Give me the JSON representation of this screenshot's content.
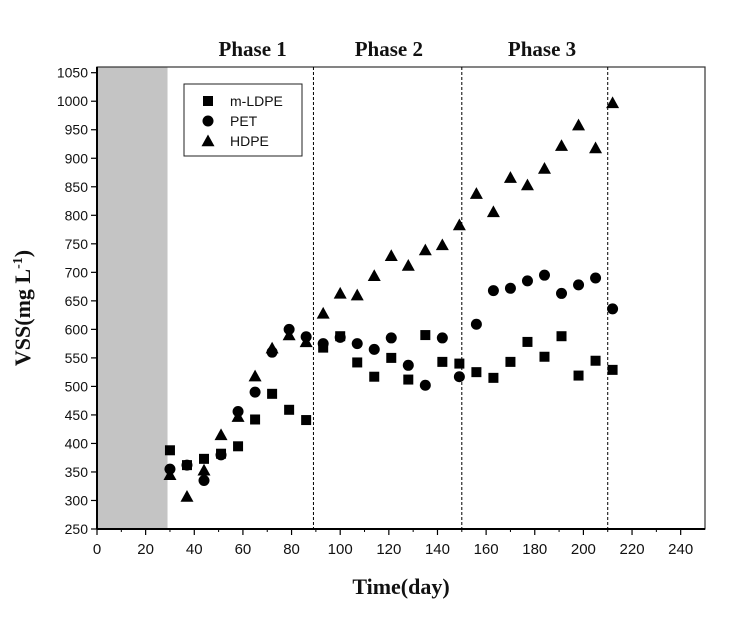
{
  "chart_data": {
    "type": "scatter",
    "xlabel": "Time(day)",
    "ylabel": "VSS(mg L",
    "ylabel_sup": "-1",
    "ylabel_close": ")",
    "xlim": [
      0,
      250
    ],
    "ylim": [
      250,
      1060
    ],
    "x_ticks": [
      0,
      20,
      40,
      60,
      80,
      100,
      120,
      140,
      160,
      180,
      200,
      220,
      240
    ],
    "y_ticks": [
      250,
      300,
      350,
      400,
      450,
      500,
      550,
      600,
      650,
      700,
      750,
      800,
      850,
      900,
      950,
      1000,
      1050
    ],
    "shaded_region": [
      0,
      29
    ],
    "phase_boundaries": [
      89,
      150,
      210
    ],
    "phases": [
      {
        "label": "Phase 1",
        "center": 64
      },
      {
        "label": "Phase 2",
        "center": 120
      },
      {
        "label": "Phase 3",
        "center": 183
      }
    ],
    "legend_position": "top-left",
    "grid": false,
    "series": [
      {
        "name": "m-LDPE",
        "marker": "square",
        "x": [
          30,
          37,
          44,
          51,
          58,
          65,
          72,
          79,
          86,
          93,
          100,
          107,
          114,
          121,
          128,
          135,
          142,
          149,
          156,
          163,
          170,
          177,
          184,
          191,
          198,
          205,
          212
        ],
        "y": [
          388,
          362,
          373,
          382,
          395,
          442,
          487,
          459,
          441,
          568,
          588,
          542,
          517,
          550,
          512,
          590,
          543,
          540,
          525,
          515,
          543,
          578,
          552,
          588,
          519,
          545,
          529
        ]
      },
      {
        "name": "PET",
        "marker": "circle",
        "x": [
          30,
          37,
          44,
          51,
          58,
          65,
          72,
          79,
          86,
          93,
          100,
          107,
          114,
          121,
          128,
          135,
          142,
          149,
          156,
          163,
          170,
          177,
          184,
          191,
          198,
          205,
          212
        ],
        "y": [
          355,
          362,
          335,
          380,
          456,
          490,
          560,
          600,
          587,
          575,
          586,
          575,
          565,
          585,
          537,
          502,
          585,
          517,
          609,
          668,
          672,
          685,
          695,
          663,
          678,
          690,
          636
        ]
      },
      {
        "name": "HDPE",
        "marker": "triangle",
        "x": [
          30,
          37,
          44,
          51,
          58,
          65,
          72,
          79,
          86,
          93,
          100,
          107,
          114,
          121,
          128,
          135,
          142,
          149,
          156,
          163,
          170,
          177,
          184,
          191,
          198,
          205,
          212
        ],
        "y": [
          345,
          307,
          353,
          415,
          447,
          518,
          567,
          590,
          578,
          628,
          663,
          660,
          694,
          729,
          712,
          739,
          748,
          783,
          838,
          806,
          866,
          853,
          882,
          922,
          958,
          918,
          997
        ]
      }
    ]
  }
}
